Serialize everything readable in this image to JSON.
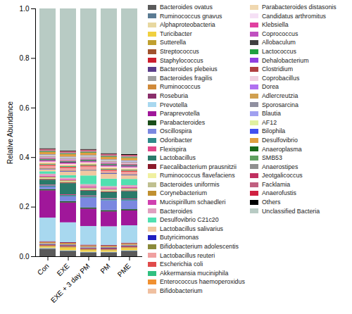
{
  "chart_data": {
    "type": "bar",
    "stacked": true,
    "legend": "right",
    "y_label": "Relative Abundance",
    "categories": [
      "Con",
      "EXE",
      "EXE + 3 day PM",
      "PM",
      "PME"
    ],
    "ylim": [
      0,
      1
    ],
    "yticks": [
      {
        "value": 0,
        "label": "0.0"
      },
      {
        "value": 0.2,
        "label": "0.2"
      },
      {
        "value": 0.4,
        "label": "0.4"
      },
      {
        "value": 0.6,
        "label": "0.6"
      },
      {
        "value": 0.8,
        "label": "0.8"
      },
      {
        "value": 1,
        "label": "1.0"
      }
    ],
    "series": [
      {
        "name": "Bacteroides ovatus",
        "color": "#5a5a5a",
        "values": [
          0.03,
          0.02,
          0.015,
          0.015,
          0.02
        ]
      },
      {
        "name": "Ruminococcus gnavus",
        "color": "#5b7b93",
        "values": [
          0.003,
          0.003,
          0.002,
          0.002,
          0.003
        ]
      },
      {
        "name": "Alphaproteobacteria",
        "color": "#e8d8a0",
        "values": [
          0.002,
          0.002,
          0.002,
          0.002,
          0.002
        ]
      },
      {
        "name": "Turicibacter",
        "color": "#f0d040",
        "values": [
          0.004,
          0.01,
          0.006,
          0.005,
          0.008
        ]
      },
      {
        "name": "Sutterella",
        "color": "#c0a030",
        "values": [
          0.003,
          0.003,
          0.003,
          0.003,
          0.003
        ]
      },
      {
        "name": "Streptococcus",
        "color": "#a0522d",
        "values": [
          0.002,
          0.002,
          0.002,
          0.002,
          0.002
        ]
      },
      {
        "name": "Staphylococcus",
        "color": "#cc1f2f",
        "values": [
          0.002,
          0.002,
          0.002,
          0.002,
          0.002
        ]
      },
      {
        "name": "Bacteroides plebeius",
        "color": "#5a3d8a",
        "values": [
          0.003,
          0.003,
          0.003,
          0.003,
          0.003
        ]
      },
      {
        "name": "Bacteroides fragilis",
        "color": "#a0a0a0",
        "values": [
          0.004,
          0.004,
          0.004,
          0.004,
          0.004
        ]
      },
      {
        "name": "Ruminococcus",
        "color": "#d08a3a",
        "values": [
          0.005,
          0.005,
          0.005,
          0.005,
          0.005
        ]
      },
      {
        "name": "Roseburia",
        "color": "#8a2e6a",
        "values": [
          0.003,
          0.003,
          0.003,
          0.003,
          0.003
        ]
      },
      {
        "name": "Prevotella",
        "color": "#a8d8ef",
        "values": [
          0.095,
          0.08,
          0.075,
          0.075,
          0.07
        ]
      },
      {
        "name": "Paraprevotella",
        "color": "#a0179a",
        "values": [
          0.11,
          0.08,
          0.07,
          0.06,
          0.06
        ]
      },
      {
        "name": "Parabacteroides",
        "color": "#1a4d1a",
        "values": [
          0.005,
          0.005,
          0.005,
          0.005,
          0.005
        ]
      },
      {
        "name": "Oscillospira",
        "color": "#7b88e0",
        "values": [
          0.01,
          0.02,
          0.04,
          0.04,
          0.035
        ]
      },
      {
        "name": "Odoribacter",
        "color": "#2e8a8a",
        "values": [
          0.005,
          0.005,
          0.005,
          0.005,
          0.005
        ]
      },
      {
        "name": "Flexispira",
        "color": "#e0478a",
        "values": [
          0.003,
          0.003,
          0.003,
          0.003,
          0.003
        ]
      },
      {
        "name": "Lactobacillus",
        "color": "#2a7a6a",
        "values": [
          0.02,
          0.045,
          0.02,
          0.025,
          0.03
        ]
      },
      {
        "name": "Faecalibacterium prausnitzii",
        "color": "#8a1a2a",
        "values": [
          0.003,
          0.003,
          0.003,
          0.003,
          0.003
        ]
      },
      {
        "name": "Ruminococcus flavefaciens",
        "color": "#f0f0a0",
        "values": [
          0.003,
          0.003,
          0.003,
          0.003,
          0.003
        ]
      },
      {
        "name": "Bacteroides uniformis",
        "color": "#c0c090",
        "values": [
          0.004,
          0.004,
          0.004,
          0.004,
          0.004
        ]
      },
      {
        "name": "Corynebacterium",
        "color": "#c09030",
        "values": [
          0.002,
          0.002,
          0.002,
          0.002,
          0.002
        ]
      },
      {
        "name": "Mucispirillum schaedleri",
        "color": "#d040b0",
        "values": [
          0.004,
          0.004,
          0.004,
          0.004,
          0.004
        ]
      },
      {
        "name": "Bacteroides",
        "color": "#e0a0c0",
        "values": [
          0.008,
          0.006,
          0.01,
          0.008,
          0.008
        ]
      },
      {
        "name": "Desulfovibrio C21c20",
        "color": "#50e0b0",
        "values": [
          0.01,
          0.01,
          0.035,
          0.03,
          0.025
        ]
      },
      {
        "name": "Lactobacillus salivarius",
        "color": "#f0c8a0",
        "values": [
          0.008,
          0.015,
          0.02,
          0.02,
          0.015
        ]
      },
      {
        "name": "Butyricimonas",
        "color": "#2020c0",
        "values": [
          0.002,
          0.002,
          0.002,
          0.002,
          0.002
        ]
      },
      {
        "name": "Bifidobacterium adolescentis",
        "color": "#8a8a3a",
        "values": [
          0.002,
          0.002,
          0.002,
          0.002,
          0.002
        ]
      },
      {
        "name": "Lactobacillus reuteri",
        "color": "#f0a0a0",
        "values": [
          0.01,
          0.01,
          0.012,
          0.008,
          0.01
        ]
      },
      {
        "name": "Escherichia coli",
        "color": "#e04a4a",
        "values": [
          0.005,
          0.005,
          0.005,
          0.005,
          0.005
        ]
      },
      {
        "name": "Akkermansia muciniphila",
        "color": "#30c080",
        "values": [
          0.003,
          0.003,
          0.003,
          0.003,
          0.003
        ]
      },
      {
        "name": "Enterococcus haemoperoxidus",
        "color": "#f09030",
        "values": [
          0.002,
          0.002,
          0.002,
          0.002,
          0.002
        ]
      },
      {
        "name": "Bifidobacterium",
        "color": "#f0c0a0",
        "values": [
          0.002,
          0.002,
          0.002,
          0.002,
          0.002
        ]
      },
      {
        "name": "Parabacteroides distasonis",
        "color": "#f0d8b0",
        "values": [
          0.003,
          0.003,
          0.003,
          0.003,
          0.003
        ]
      },
      {
        "name": "Candidatus arthromitus",
        "color": "#f5e0f5",
        "values": [
          0.002,
          0.002,
          0.002,
          0.002,
          0.002
        ]
      },
      {
        "name": "Klebsiella",
        "color": "#e040a0",
        "values": [
          0.002,
          0.002,
          0.002,
          0.002,
          0.002
        ]
      },
      {
        "name": "Coprococcus",
        "color": "#c050c0",
        "values": [
          0.003,
          0.003,
          0.003,
          0.003,
          0.003
        ]
      },
      {
        "name": "Allobaculum",
        "color": "#404040",
        "values": [
          0.003,
          0.003,
          0.003,
          0.003,
          0.003
        ]
      },
      {
        "name": "Lactococcus",
        "color": "#20a040",
        "values": [
          0.002,
          0.002,
          0.002,
          0.002,
          0.002
        ]
      },
      {
        "name": "Dehalobacterium",
        "color": "#9040e0",
        "values": [
          0.002,
          0.002,
          0.002,
          0.002,
          0.002
        ]
      },
      {
        "name": "Clostridium",
        "color": "#b04040",
        "values": [
          0.003,
          0.003,
          0.003,
          0.003,
          0.003
        ]
      },
      {
        "name": "Coprobacillus",
        "color": "#f0d0e0",
        "values": [
          0.002,
          0.002,
          0.002,
          0.002,
          0.002
        ]
      },
      {
        "name": "Dorea",
        "color": "#b070f0",
        "values": [
          0.002,
          0.002,
          0.002,
          0.002,
          0.002
        ]
      },
      {
        "name": "Adlercreutzia",
        "color": "#d0a050",
        "values": [
          0.002,
          0.002,
          0.002,
          0.002,
          0.002
        ]
      },
      {
        "name": "Sporosarcina",
        "color": "#9090a0",
        "values": [
          0.002,
          0.002,
          0.002,
          0.002,
          0.002
        ]
      },
      {
        "name": "Blautia",
        "color": "#a0a0f0",
        "values": [
          0.002,
          0.002,
          0.002,
          0.002,
          0.002
        ]
      },
      {
        "name": "AF12",
        "color": "#e0f0a0",
        "values": [
          0.002,
          0.002,
          0.002,
          0.002,
          0.002
        ]
      },
      {
        "name": "Bilophila",
        "color": "#4050f0",
        "values": [
          0.002,
          0.002,
          0.002,
          0.002,
          0.002
        ]
      },
      {
        "name": "Desulfovibrio",
        "color": "#e0a040",
        "values": [
          0.01,
          0.01,
          0.01,
          0.01,
          0.01
        ]
      },
      {
        "name": "Anaeroplasma",
        "color": "#1a6a1a",
        "values": [
          0.002,
          0.002,
          0.002,
          0.002,
          0.002
        ]
      },
      {
        "name": "SMB53",
        "color": "#60a060",
        "values": [
          0.002,
          0.002,
          0.002,
          0.002,
          0.002
        ]
      },
      {
        "name": "Anaerostipes",
        "color": "#909090",
        "values": [
          0.002,
          0.002,
          0.002,
          0.002,
          0.002
        ]
      },
      {
        "name": "Jeotgalicoccus",
        "color": "#c03060",
        "values": [
          0.002,
          0.002,
          0.002,
          0.002,
          0.002
        ]
      },
      {
        "name": "Facklamia",
        "color": "#c06080",
        "values": [
          0.002,
          0.002,
          0.002,
          0.002,
          0.002
        ]
      },
      {
        "name": "Anaerofustis",
        "color": "#d02040",
        "values": [
          0.002,
          0.002,
          0.002,
          0.002,
          0.002
        ]
      },
      {
        "name": "Others",
        "color": "#000000",
        "values": [
          0.003,
          0.003,
          0.003,
          0.003,
          0.003
        ]
      },
      {
        "name": "Unclassified Bacteria",
        "color": "#b8cbc4",
        "values": [
          0.564,
          0.573,
          0.567,
          0.584,
          0.588
        ]
      }
    ]
  }
}
